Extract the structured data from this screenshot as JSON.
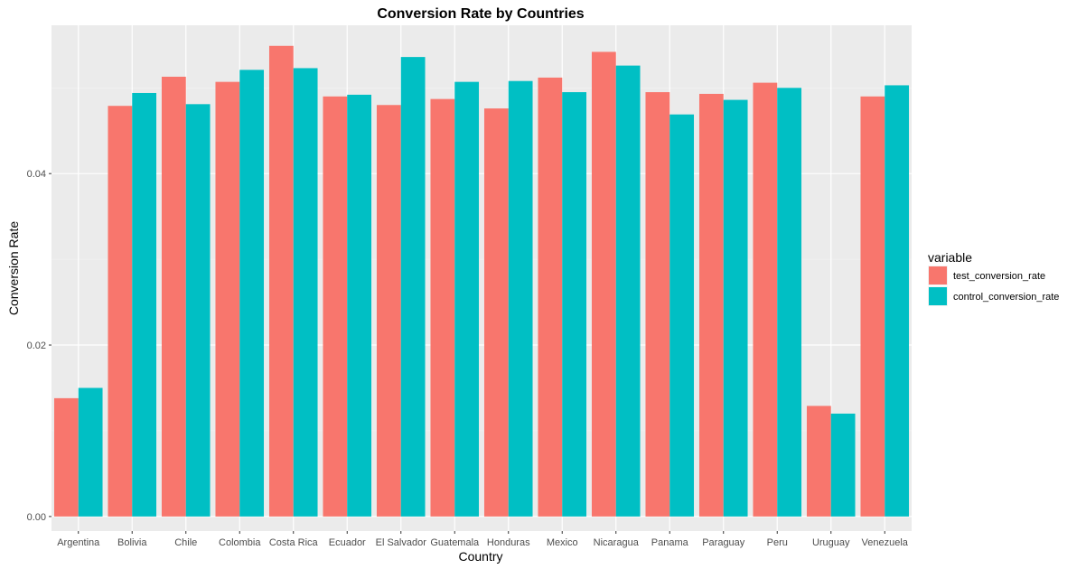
{
  "chart_data": {
    "type": "bar",
    "title": "Conversion Rate by Countries",
    "xlabel": "Country",
    "ylabel": "Conversion Rate",
    "ylim": [
      -0.0017,
      0.0573
    ],
    "yticks": [
      "0.00",
      "0.02",
      "0.04"
    ],
    "ytick_values": [
      0,
      0.02,
      0.04
    ],
    "grid": true,
    "legend_position": "right",
    "legend_title": "variable",
    "categories": [
      "Argentina",
      "Bolivia",
      "Chile",
      "Colombia",
      "Costa Rica",
      "Ecuador",
      "El Salvador",
      "Guatemala",
      "Honduras",
      "Mexico",
      "Nicaragua",
      "Panama",
      "Paraguay",
      "Peru",
      "Uruguay",
      "Venezuela"
    ],
    "series": [
      {
        "name": "test_conversion_rate",
        "color": "#F8766D",
        "values": [
          0.0138,
          0.0479,
          0.0513,
          0.0507,
          0.0549,
          0.049,
          0.048,
          0.0487,
          0.0476,
          0.0512,
          0.0542,
          0.0495,
          0.0493,
          0.0506,
          0.0129,
          0.049
        ]
      },
      {
        "name": "control_conversion_rate",
        "color": "#00BFC4",
        "values": [
          0.015,
          0.0494,
          0.0481,
          0.0521,
          0.0523,
          0.0492,
          0.0536,
          0.0507,
          0.0508,
          0.0495,
          0.0526,
          0.0469,
          0.0486,
          0.05,
          0.012,
          0.0503
        ]
      }
    ]
  }
}
